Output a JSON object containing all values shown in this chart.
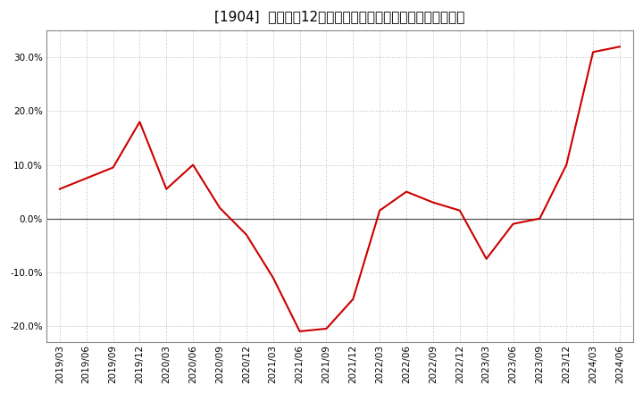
{
  "title": "[1904]  売上高の12か月移動合計の対前年同期増減率の推移",
  "line_color": "#cc0000",
  "background_color": "#ffffff",
  "plot_bg_color": "#ffffff",
  "grid_color": "#bbbbbb",
  "xlabels": [
    "2019/03",
    "2019/06",
    "2019/09",
    "2019/12",
    "2020/03",
    "2020/06",
    "2020/09",
    "2020/12",
    "2021/03",
    "2021/06",
    "2021/09",
    "2021/12",
    "2022/03",
    "2022/06",
    "2022/09",
    "2022/12",
    "2023/03",
    "2023/06",
    "2023/09",
    "2023/12",
    "2024/03",
    "2024/06"
  ],
  "values": [
    5.5,
    7.5,
    9.5,
    18.0,
    5.5,
    10.0,
    2.0,
    -3.0,
    -11.0,
    -21.0,
    -20.5,
    -15.0,
    1.5,
    5.0,
    3.0,
    1.5,
    -7.5,
    -1.0,
    0.0,
    10.0,
    31.0,
    32.0
  ],
  "ylim": [
    -23,
    35
  ],
  "yticks": [
    -20.0,
    -10.0,
    0.0,
    10.0,
    20.0,
    30.0
  ],
  "title_fontsize": 11,
  "tick_fontsize": 7.5,
  "zero_line_color": "#555555"
}
